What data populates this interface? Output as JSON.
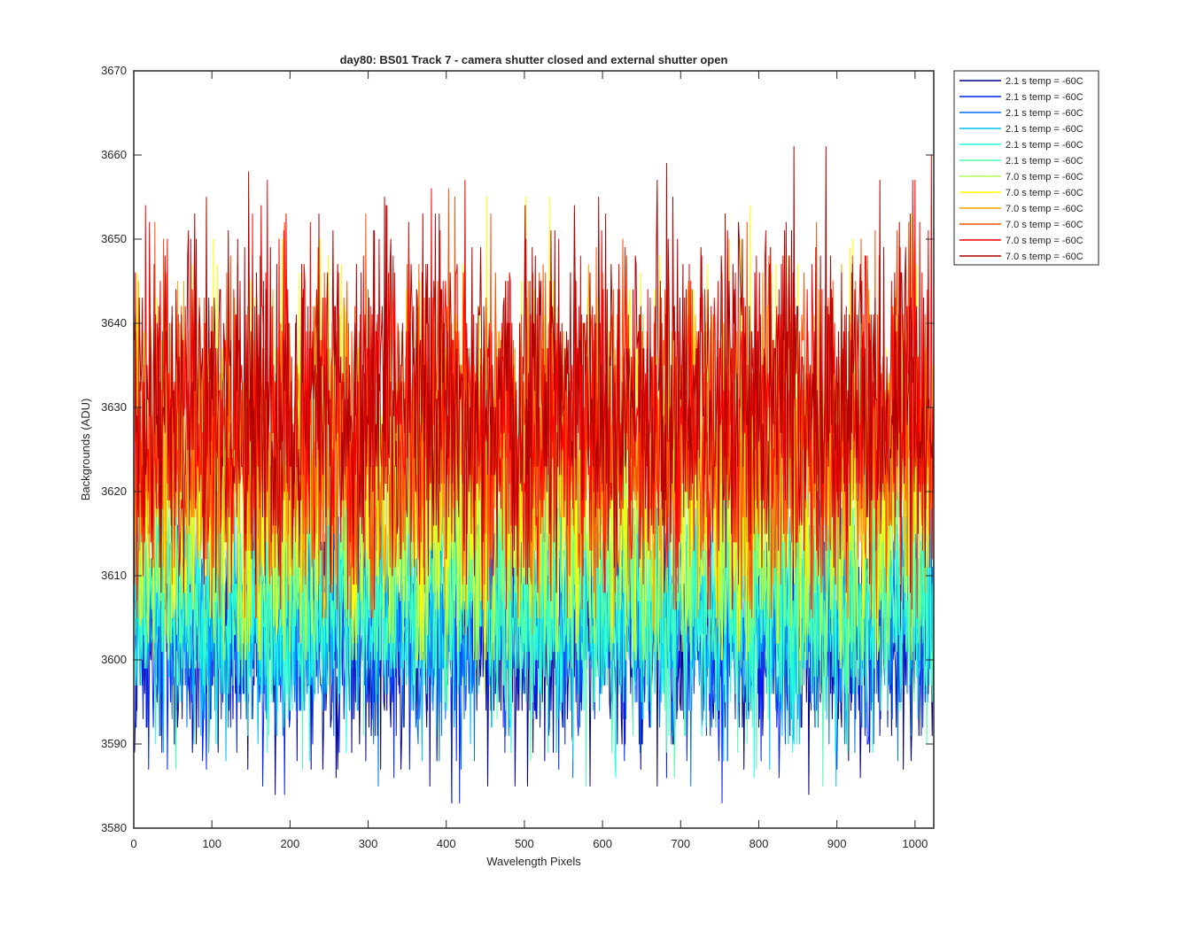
{
  "chart_data": {
    "type": "line",
    "title": "day80: BS01  Track 7 - camera shutter closed and external shutter open",
    "xlabel": "Wavelength Pixels",
    "ylabel": "Backgrounds (ADU)",
    "xlim": [
      0,
      1024
    ],
    "ylim": [
      3580,
      3670
    ],
    "xticks": [
      0,
      100,
      200,
      300,
      400,
      500,
      600,
      700,
      800,
      900,
      1000
    ],
    "yticks": [
      3580,
      3590,
      3600,
      3610,
      3620,
      3630,
      3640,
      3650,
      3660,
      3670
    ],
    "grid": false,
    "legend_position": "outside-top-right",
    "x_range": [
      1,
      1024
    ],
    "series": [
      {
        "name": "2.1 s temp = -60C",
        "color": "#00008f",
        "mean": 3603.0,
        "min": 3582,
        "max": 3618
      },
      {
        "name": "2.1 s temp = -60C",
        "color": "#0020ff",
        "mean": 3604.0,
        "min": 3583,
        "max": 3620
      },
      {
        "name": "2.1 s temp = -60C",
        "color": "#0070ff",
        "mean": 3605.0,
        "min": 3585,
        "max": 3621
      },
      {
        "name": "2.1 s temp = -60C",
        "color": "#00c0ff",
        "mean": 3606.0,
        "min": 3585,
        "max": 3622
      },
      {
        "name": "2.1 s temp = -60C",
        "color": "#20ffdf",
        "mean": 3607.0,
        "min": 3586,
        "max": 3623
      },
      {
        "name": "2.1 s temp = -60C",
        "color": "#50ffaf",
        "mean": 3608.0,
        "min": 3585,
        "max": 3624
      },
      {
        "name": "7.0 s temp = -60C",
        "color": "#afff50",
        "mean": 3618.0,
        "min": 3596,
        "max": 3642
      },
      {
        "name": "7.0 s temp = -60C",
        "color": "#ffff00",
        "mean": 3622.0,
        "min": 3600,
        "max": 3655
      },
      {
        "name": "7.0 s temp = -60C",
        "color": "#ffa000",
        "mean": 3625.0,
        "min": 3603,
        "max": 3650
      },
      {
        "name": "7.0 s temp = -60C",
        "color": "#ff5000",
        "mean": 3627.0,
        "min": 3605,
        "max": 3658
      },
      {
        "name": "7.0 s temp = -60C",
        "color": "#ff0000",
        "mean": 3629.0,
        "min": 3606,
        "max": 3660
      },
      {
        "name": "7.0 s temp = -60C",
        "color": "#b00000",
        "mean": 3631.0,
        "min": 3608,
        "max": 3661
      }
    ]
  }
}
